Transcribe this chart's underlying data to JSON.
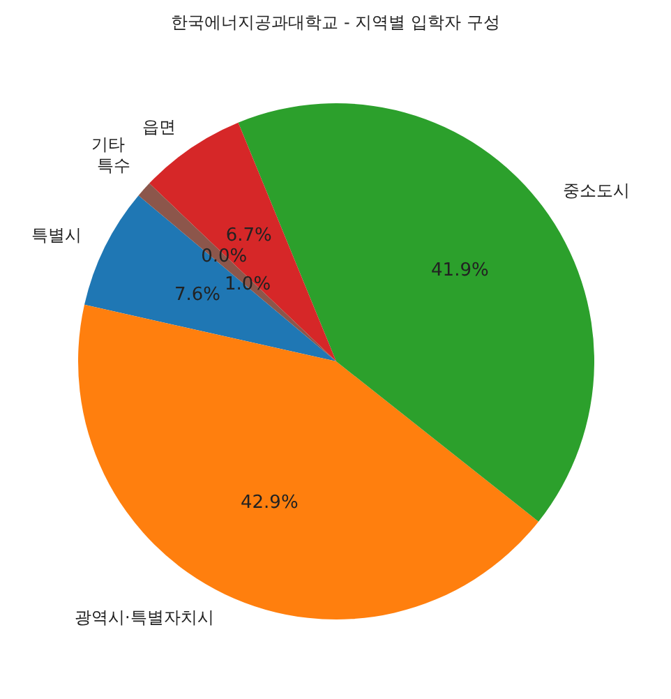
{
  "chart_data": {
    "type": "pie",
    "title": "한국에너지공과대학교 - 지역별 입학자 구성",
    "categories": [
      "특별시",
      "광역시·특별자치시",
      "중소도시",
      "읍면",
      "특수",
      "기타"
    ],
    "values": [
      7.6,
      42.9,
      41.9,
      6.7,
      0.0,
      1.0
    ],
    "colors": [
      "#1f77b4",
      "#ff7f0e",
      "#2ca02c",
      "#d62728",
      "#9467bd",
      "#8c564b"
    ],
    "value_labels": [
      "7.6%",
      "42.9%",
      "41.9%",
      "6.7%",
      "0.0%",
      "1.0%"
    ]
  }
}
